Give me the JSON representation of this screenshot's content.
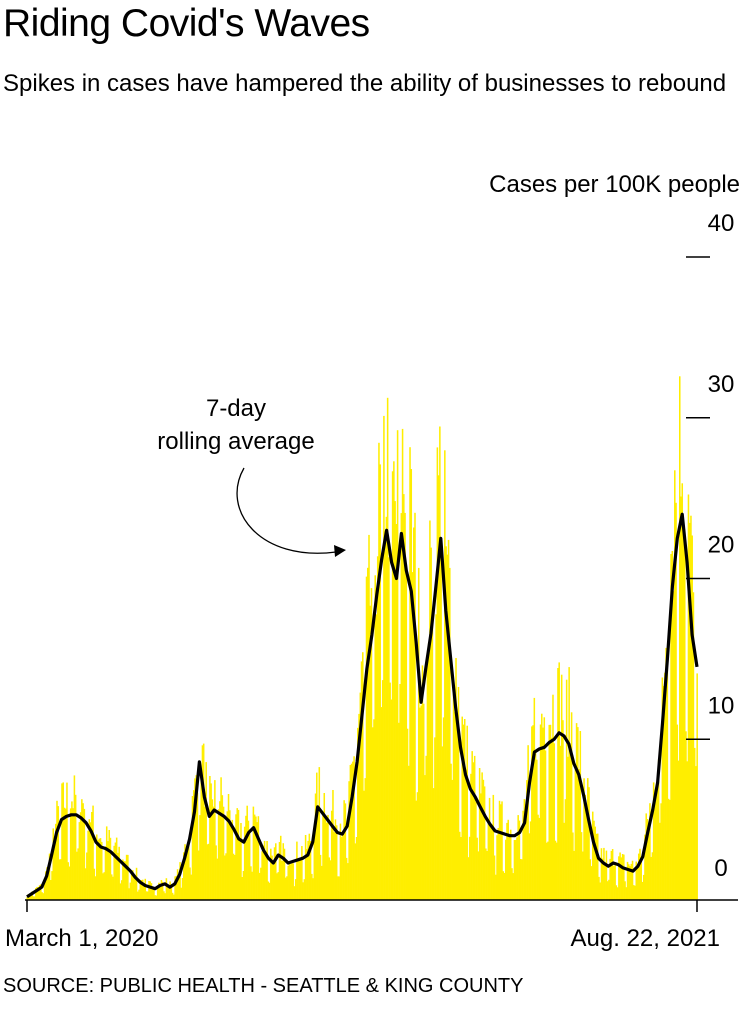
{
  "title": "Riding Covid's Waves",
  "subtitle": "Spikes in cases have hampered the ability of businesses to rebound",
  "source": "SOURCE: PUBLIC HEALTH - SEATTLE & KING COUNTY",
  "colors": {
    "bars": "#ffee00",
    "line": "#000000",
    "axis": "#000000"
  },
  "chart_data": {
    "type": "bar",
    "ylabel": "Cases per 100K people",
    "ylim": [
      0,
      40
    ],
    "yticks": [
      0,
      10,
      20,
      30,
      40
    ],
    "xlim": [
      "2020-03-01",
      "2021-08-22"
    ],
    "x_tick_labels": [
      "March 1, 2020",
      "Aug. 22, 2021"
    ],
    "annotation": "7-day rolling average",
    "series": [
      {
        "type": "bar"
      },
      {
        "type": "line",
        "values": [
          0.2,
          0.4,
          0.6,
          0.8,
          1.5,
          2.8,
          4.2,
          5.0,
          5.2,
          5.3,
          5.3,
          5.1,
          4.8,
          4.3,
          3.6,
          3.3,
          3.2,
          3.0,
          2.7,
          2.4,
          2.1,
          1.8,
          1.4,
          1.1,
          0.9,
          0.8,
          0.7,
          0.9,
          1.0,
          0.8,
          1.0,
          1.6,
          2.6,
          3.8,
          5.5,
          8.6,
          6.4,
          5.2,
          5.6,
          5.4,
          5.2,
          4.9,
          4.4,
          3.8,
          3.6,
          4.2,
          4.5,
          3.8,
          3.1,
          2.6,
          2.3,
          2.8,
          2.6,
          2.3,
          2.4,
          2.5,
          2.6,
          2.8,
          3.6,
          5.8,
          5.4,
          5.0,
          4.6,
          4.2,
          4.1,
          4.6,
          6.4,
          8.6,
          11.5,
          14.4,
          16.5,
          19.0,
          21.2,
          23.0,
          21.0,
          20.0,
          22.8,
          20.5,
          19.2,
          16.0,
          12.3,
          14.5,
          16.6,
          19.5,
          22.5,
          18.0,
          15.0,
          12.0,
          9.5,
          7.8,
          6.9,
          6.4,
          5.8,
          5.2,
          4.7,
          4.3,
          4.2,
          4.1,
          4.0,
          4.0,
          4.2,
          4.8,
          7.3,
          9.2,
          9.4,
          9.5,
          9.8,
          10.0,
          10.4,
          10.2,
          9.7,
          8.5,
          7.8,
          6.5,
          5.0,
          3.6,
          2.6,
          2.3,
          2.1,
          2.3,
          2.2,
          2.0,
          1.9,
          1.8,
          2.1,
          2.7,
          4.2,
          5.6,
          7.3,
          11.0,
          15.0,
          19.5,
          22.5,
          24.0,
          21.0,
          16.5,
          14.5
        ]
      }
    ]
  }
}
